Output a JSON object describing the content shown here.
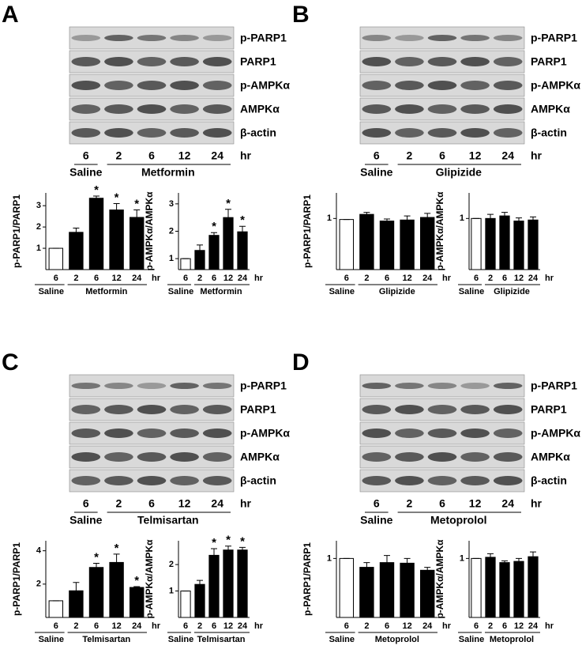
{
  "panels": [
    {
      "letter": "A",
      "blot_labels": [
        "p-PARP1",
        "PARP1",
        "p-AMPKα",
        "AMPKα",
        "β-actin"
      ],
      "lanes": [
        "6",
        "2",
        "6",
        "12",
        "24"
      ],
      "unit": "hr",
      "groups": [
        "Saline",
        "Metformin"
      ]
    },
    {
      "letter": "B",
      "blot_labels": [
        "p-PARP1",
        "PARP1",
        "p-AMPKα",
        "AMPKα",
        "β-actin"
      ],
      "lanes": [
        "6",
        "2",
        "6",
        "12",
        "24"
      ],
      "unit": "hr",
      "groups": [
        "Saline",
        "Glipizide"
      ]
    },
    {
      "letter": "C",
      "blot_labels": [
        "p-PARP1",
        "PARP1",
        "p-AMPKα",
        "AMPKα",
        "β-actin"
      ],
      "lanes": [
        "6",
        "2",
        "6",
        "12",
        "24"
      ],
      "unit": "hr",
      "groups": [
        "Saline",
        "Telmisartan"
      ]
    },
    {
      "letter": "D",
      "blot_labels": [
        "p-PARP1",
        "PARP1",
        "p-AMPKα",
        "AMPKα",
        "β-actin"
      ],
      "lanes": [
        "6",
        "2",
        "6",
        "12",
        "24"
      ],
      "unit": "hr",
      "groups": [
        "Saline",
        "Metoprolol"
      ]
    }
  ],
  "chart_data": [
    {
      "type": "bar",
      "ylabel": "p-PARP1/PARP1",
      "categories": [
        "6",
        "2",
        "6",
        "12",
        "24"
      ],
      "unit": "hr",
      "groups": [
        "Saline",
        "Metformin"
      ],
      "values": [
        1,
        1.75,
        3.35,
        2.8,
        2.45
      ],
      "errors": [
        0,
        0.2,
        0.1,
        0.3,
        0.35
      ],
      "markers": [
        null,
        null,
        "*",
        "*",
        "*"
      ],
      "colors": [
        "#ffffff",
        "#000000",
        "#000000",
        "#000000",
        "#000000"
      ],
      "ylim": [
        0,
        3.6
      ],
      "yticks": [
        1,
        2,
        3
      ]
    },
    {
      "type": "bar",
      "ylabel": "p-AMPKα/AMPKα",
      "categories": [
        "6",
        "2",
        "6",
        "12",
        "24"
      ],
      "unit": "hr",
      "groups": [
        "Saline",
        "Metformin"
      ],
      "values": [
        1,
        1.3,
        1.85,
        2.5,
        1.98
      ],
      "errors": [
        0,
        0.2,
        0.1,
        0.3,
        0.2
      ],
      "markers": [
        null,
        null,
        "*",
        "*",
        "*"
      ],
      "colors": [
        "#ffffff",
        "#000000",
        "#000000",
        "#000000",
        "#000000"
      ],
      "ylim": [
        0.6,
        3.4
      ],
      "yticks": [
        1,
        2,
        3
      ]
    },
    {
      "type": "bar",
      "ylabel": "p-PARP1/PARP1",
      "categories": [
        "6",
        "2",
        "6",
        "12",
        "24"
      ],
      "unit": "hr",
      "groups": [
        "Saline",
        "Glipizide"
      ],
      "values": [
        0.98,
        1.08,
        0.95,
        0.97,
        1.02
      ],
      "errors": [
        0,
        0.04,
        0.04,
        0.08,
        0.08
      ],
      "markers": [
        null,
        null,
        null,
        null,
        null
      ],
      "colors": [
        "#ffffff",
        "#000000",
        "#000000",
        "#000000",
        "#000000"
      ],
      "ylim": [
        0,
        1.5
      ],
      "yticks": [
        1
      ]
    },
    {
      "type": "bar",
      "ylabel": "p-AMPKα/AMPKα",
      "categories": [
        "6",
        "2",
        "6",
        "12",
        "24"
      ],
      "unit": "hr",
      "groups": [
        "Saline",
        "Glipizide"
      ],
      "values": [
        1,
        1.0,
        1.05,
        0.95,
        0.97
      ],
      "errors": [
        0,
        0.08,
        0.07,
        0.06,
        0.06
      ],
      "markers": [
        null,
        null,
        null,
        null,
        null
      ],
      "colors": [
        "#ffffff",
        "#000000",
        "#000000",
        "#000000",
        "#000000"
      ],
      "ylim": [
        0,
        1.5
      ],
      "yticks": [
        1
      ]
    },
    {
      "type": "bar",
      "ylabel": "p-PARP1/PARP1",
      "categories": [
        "6",
        "2",
        "6",
        "12",
        "24"
      ],
      "unit": "hr",
      "groups": [
        "Saline",
        "Telmisartan"
      ],
      "values": [
        1,
        1.6,
        3.0,
        3.3,
        1.8
      ],
      "errors": [
        0,
        0.5,
        0.25,
        0.5,
        0.05
      ],
      "markers": [
        null,
        null,
        "*",
        "*",
        "*"
      ],
      "colors": [
        "#ffffff",
        "#000000",
        "#000000",
        "#000000",
        "#000000"
      ],
      "ylim": [
        0,
        4.6
      ],
      "yticks": [
        2,
        4
      ]
    },
    {
      "type": "bar",
      "ylabel": "p-AMPKα/AMPKα",
      "categories": [
        "6",
        "2",
        "6",
        "12",
        "24"
      ],
      "unit": "hr",
      "groups": [
        "Saline",
        "Telmisartan"
      ],
      "values": [
        1,
        1.25,
        2.35,
        2.55,
        2.55
      ],
      "errors": [
        0,
        0.15,
        0.25,
        0.15,
        0.1
      ],
      "markers": [
        null,
        null,
        "*",
        "*",
        "*"
      ],
      "colors": [
        "#ffffff",
        "#000000",
        "#000000",
        "#000000",
        "#000000"
      ],
      "ylim": [
        0,
        2.9
      ],
      "yticks": [
        1,
        2
      ]
    },
    {
      "type": "bar",
      "ylabel": "p-PARP1/PARP1",
      "categories": [
        "6",
        "2",
        "6",
        "12",
        "24"
      ],
      "unit": "hr",
      "groups": [
        "Saline",
        "Metoprolol"
      ],
      "values": [
        1,
        0.85,
        0.93,
        0.92,
        0.8
      ],
      "errors": [
        0,
        0.08,
        0.12,
        0.08,
        0.05
      ],
      "markers": [
        null,
        null,
        null,
        null,
        null
      ],
      "colors": [
        "#ffffff",
        "#000000",
        "#000000",
        "#000000",
        "#000000"
      ],
      "ylim": [
        0,
        1.3
      ],
      "yticks": [
        1
      ]
    },
    {
      "type": "bar",
      "ylabel": "p-AMPKα/AMPKα",
      "categories": [
        "6",
        "2",
        "6",
        "12",
        "24"
      ],
      "unit": "hr",
      "groups": [
        "Saline",
        "Metoprolol"
      ],
      "values": [
        1,
        1.02,
        0.93,
        0.95,
        1.03
      ],
      "errors": [
        0,
        0.06,
        0.03,
        0.05,
        0.08
      ],
      "markers": [
        null,
        null,
        null,
        null,
        null
      ],
      "colors": [
        "#ffffff",
        "#000000",
        "#000000",
        "#000000",
        "#000000"
      ],
      "ylim": [
        0,
        1.3
      ],
      "yticks": [
        1
      ]
    }
  ]
}
